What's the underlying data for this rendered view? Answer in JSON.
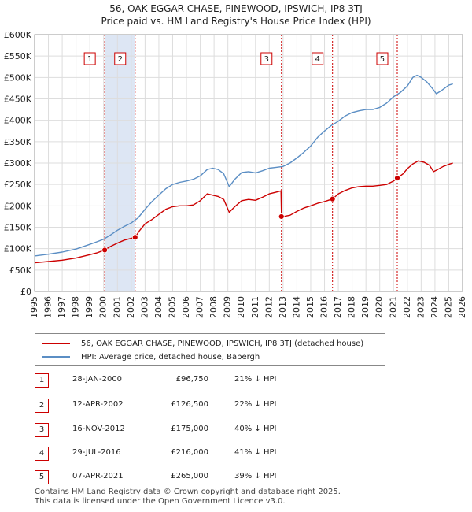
{
  "header": {
    "title": "56, OAK EGGAR CHASE, PINEWOOD, IPSWICH, IP8 3TJ",
    "subtitle": "Price paid vs. HM Land Registry's House Price Index (HPI)"
  },
  "legend": {
    "property_label": "56, OAK EGGAR CHASE, PINEWOOD, IPSWICH, IP8 3TJ (detached house)",
    "hpi_label": "HPI: Average price, detached house, Babergh"
  },
  "transactions": [
    {
      "num": "1",
      "date": "28-JAN-2000",
      "price": "£96,750",
      "hpi": "21% ↓ HPI"
    },
    {
      "num": "2",
      "date": "12-APR-2002",
      "price": "£126,500",
      "hpi": "22% ↓ HPI"
    },
    {
      "num": "3",
      "date": "16-NOV-2012",
      "price": "£175,000",
      "hpi": "40% ↓ HPI"
    },
    {
      "num": "4",
      "date": "29-JUL-2016",
      "price": "£216,000",
      "hpi": "41% ↓ HPI"
    },
    {
      "num": "5",
      "date": "07-APR-2021",
      "price": "£265,000",
      "hpi": "39% ↓ HPI"
    }
  ],
  "footer": {
    "line1": "Contains HM Land Registry data © Crown copyright and database right 2025.",
    "line2": "This data is licensed under the Open Government Licence v3.0."
  },
  "chart_data": {
    "type": "line",
    "xlim": [
      1995,
      2026
    ],
    "ylim": [
      0,
      600000
    ],
    "y_ticks": [
      0,
      50000,
      100000,
      150000,
      200000,
      250000,
      300000,
      350000,
      400000,
      450000,
      500000,
      550000,
      600000
    ],
    "y_tick_labels": [
      "£0",
      "£50K",
      "£100K",
      "£150K",
      "£200K",
      "£250K",
      "£300K",
      "£350K",
      "£400K",
      "£450K",
      "£500K",
      "£550K",
      "£600K"
    ],
    "x_ticks": [
      1995,
      1996,
      1997,
      1998,
      1999,
      2000,
      2001,
      2002,
      2003,
      2004,
      2005,
      2006,
      2007,
      2008,
      2009,
      2010,
      2011,
      2012,
      2013,
      2014,
      2015,
      2016,
      2017,
      2018,
      2019,
      2020,
      2021,
      2022,
      2023,
      2024,
      2025,
      2026
    ],
    "x_tick_labels": [
      "1995",
      "1996",
      "1997",
      "1998",
      "1999",
      "2000",
      "2001",
      "2002",
      "2003",
      "2004",
      "2005",
      "2006",
      "2007",
      "2008",
      "2009",
      "2010",
      "2011",
      "2012",
      "2013",
      "2014",
      "2015",
      "2016",
      "2017",
      "2018",
      "2019",
      "2020",
      "2021",
      "2022",
      "2023",
      "2024",
      "2025",
      "2026"
    ],
    "grid": true,
    "shaded_periods": [
      [
        2000.08,
        2002.28
      ]
    ],
    "series": [
      {
        "name": "56, OAK EGGAR CHASE, PINEWOOD, IPSWICH, IP8 3TJ (detached house)",
        "color": "#cc0000",
        "x": [
          1995.0,
          1996.0,
          1997.0,
          1998.0,
          1999.0,
          1999.5,
          2000.08,
          2000.5,
          2001.0,
          2001.5,
          2002.0,
          2002.28,
          2002.6,
          2003.0,
          2003.5,
          2004.0,
          2004.5,
          2005.0,
          2005.5,
          2006.0,
          2006.5,
          2007.0,
          2007.5,
          2007.9,
          2008.3,
          2008.7,
          2009.1,
          2009.5,
          2010.0,
          2010.5,
          2011.0,
          2011.5,
          2012.0,
          2012.5,
          2012.85,
          2012.88,
          2013.0,
          2013.5,
          2014.0,
          2014.5,
          2015.0,
          2015.5,
          2016.0,
          2016.58,
          2017.0,
          2017.5,
          2018.0,
          2018.5,
          2019.0,
          2019.5,
          2020.0,
          2020.5,
          2021.0,
          2021.27,
          2021.7,
          2022.0,
          2022.4,
          2022.8,
          2023.2,
          2023.6,
          2023.9,
          2024.2,
          2024.6,
          2025.0,
          2025.3
        ],
        "y": [
          67000,
          70000,
          73000,
          78000,
          86000,
          90000,
          96750,
          105000,
          113000,
          120000,
          124000,
          126500,
          142000,
          158000,
          168000,
          180000,
          192000,
          198000,
          200000,
          200000,
          202000,
          212000,
          228000,
          225000,
          222000,
          215000,
          185000,
          198000,
          212000,
          215000,
          213000,
          220000,
          228000,
          232000,
          235000,
          178000,
          175000,
          178000,
          187000,
          195000,
          200000,
          206000,
          210000,
          216000,
          228000,
          236000,
          242000,
          245000,
          246000,
          246000,
          248000,
          250000,
          258000,
          265000,
          275000,
          287000,
          298000,
          305000,
          302000,
          295000,
          280000,
          285000,
          292000,
          297000,
          300000
        ]
      },
      {
        "name": "HPI: Average price, detached house, Babergh",
        "color": "#5b8ec4",
        "x": [
          1995.0,
          1996.0,
          1997.0,
          1998.0,
          1999.0,
          1999.5,
          2000.0,
          2000.5,
          2001.0,
          2001.5,
          2002.0,
          2002.5,
          2003.0,
          2003.5,
          2004.0,
          2004.5,
          2005.0,
          2005.5,
          2006.0,
          2006.5,
          2007.0,
          2007.5,
          2007.9,
          2008.3,
          2008.7,
          2009.1,
          2009.5,
          2010.0,
          2010.5,
          2011.0,
          2011.5,
          2012.0,
          2012.5,
          2013.0,
          2013.5,
          2014.0,
          2014.5,
          2015.0,
          2015.5,
          2016.0,
          2016.5,
          2017.0,
          2017.5,
          2018.0,
          2018.5,
          2019.0,
          2019.5,
          2020.0,
          2020.5,
          2021.0,
          2021.5,
          2022.0,
          2022.4,
          2022.7,
          2023.0,
          2023.4,
          2023.8,
          2024.1,
          2024.5,
          2025.0,
          2025.3
        ],
        "y": [
          83000,
          87000,
          92000,
          99000,
          110000,
          116000,
          122000,
          132000,
          143000,
          152000,
          160000,
          172000,
          192000,
          210000,
          225000,
          240000,
          250000,
          255000,
          258000,
          262000,
          270000,
          285000,
          288000,
          285000,
          275000,
          245000,
          262000,
          278000,
          280000,
          277000,
          282000,
          288000,
          290000,
          292000,
          300000,
          312000,
          325000,
          340000,
          360000,
          375000,
          388000,
          398000,
          410000,
          418000,
          422000,
          425000,
          425000,
          430000,
          440000,
          455000,
          465000,
          480000,
          500000,
          505000,
          500000,
          490000,
          475000,
          462000,
          470000,
          482000,
          485000
        ]
      }
    ],
    "markers": [
      {
        "label": "1",
        "x": 2000.08,
        "y": 96750
      },
      {
        "label": "2",
        "x": 2002.28,
        "y": 126500
      },
      {
        "label": "3",
        "x": 2012.88,
        "y": 175000
      },
      {
        "label": "4",
        "x": 2016.58,
        "y": 216000
      },
      {
        "label": "5",
        "x": 2021.27,
        "y": 265000
      }
    ]
  }
}
